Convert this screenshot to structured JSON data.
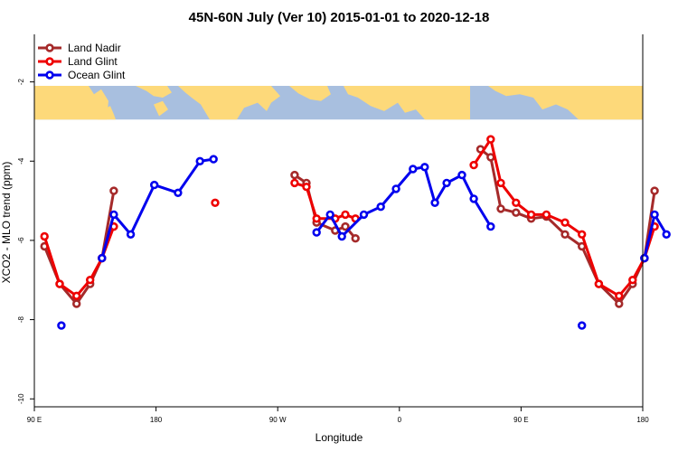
{
  "chart_data": {
    "type": "line",
    "title": "45N-60N July (Ver 10)   2015-01-01 to 2020-12-18",
    "xlabel": "Longitude",
    "ylabel": "XCO2 - MLO trend (ppm)",
    "xlim": [
      90,
      450
    ],
    "ylim": [
      -10.2,
      -0.8
    ],
    "x_ticks": [
      {
        "value": 90,
        "label": "90 E"
      },
      {
        "value": 180,
        "label": "180"
      },
      {
        "value": 270,
        "label": "90 W"
      },
      {
        "value": 360,
        "label": "0"
      },
      {
        "value": 450,
        "label": "90 E"
      },
      {
        "value": 540,
        "label": "180"
      }
    ],
    "y_ticks": [
      {
        "value": -2,
        "label": "-2"
      },
      {
        "value": -4,
        "label": "-4"
      },
      {
        "value": -6,
        "label": "-6"
      },
      {
        "value": -8,
        "label": "-8"
      },
      {
        "value": -10,
        "label": "-10"
      }
    ],
    "map_band": {
      "ymin": -2.95,
      "ymax": -2.1,
      "ocean_color": "#a8bfdf",
      "land_color": "#fdd97a"
    },
    "legend": {
      "position": "top-left"
    },
    "series": [
      {
        "name": "Land Nadir",
        "color": "#a52a2a",
        "segments": [
          [
            [
              96,
              -6.15
            ],
            [
              105,
              -7.1
            ],
            [
              115,
              -7.6
            ],
            [
              123,
              -7.1
            ],
            [
              130,
              -6.45
            ],
            [
              137,
              -4.75
            ]
          ],
          [
            [
              244,
              -4.35
            ],
            [
              251,
              -4.55
            ],
            [
              257,
              -5.55
            ],
            [
              268,
              -5.75
            ],
            [
              274,
              -5.65
            ],
            [
              280,
              -5.95
            ]
          ],
          [
            [
              354,
              -3.7
            ],
            [
              360,
              -3.9
            ],
            [
              366,
              -5.2
            ],
            [
              375,
              -5.3
            ],
            [
              384,
              -5.45
            ],
            [
              393,
              -5.4
            ],
            [
              404,
              -5.85
            ],
            [
              414,
              -6.15
            ],
            [
              424,
              -7.1
            ],
            [
              436,
              -7.6
            ],
            [
              444,
              -7.1
            ],
            [
              451,
              -6.45
            ],
            [
              457,
              -4.75
            ]
          ]
        ],
        "isolated": []
      },
      {
        "name": "Land Glint",
        "color": "#ee0000",
        "segments": [
          [
            [
              96,
              -5.9
            ],
            [
              105,
              -7.1
            ],
            [
              115,
              -7.4
            ],
            [
              123,
              -7.0
            ],
            [
              130,
              -6.45
            ],
            [
              137,
              -5.65
            ]
          ],
          [
            [
              244,
              -4.55
            ],
            [
              251,
              -4.65
            ],
            [
              257,
              -5.45
            ],
            [
              268,
              -5.45
            ],
            [
              274,
              -5.35
            ],
            [
              280,
              -5.45
            ]
          ],
          [
            [
              350,
              -4.1
            ],
            [
              360,
              -3.45
            ],
            [
              366,
              -4.55
            ],
            [
              375,
              -5.05
            ],
            [
              384,
              -5.35
            ],
            [
              393,
              -5.35
            ],
            [
              404,
              -5.55
            ],
            [
              414,
              -5.85
            ],
            [
              424,
              -7.1
            ],
            [
              436,
              -7.4
            ],
            [
              444,
              -7.0
            ],
            [
              451,
              -6.45
            ],
            [
              457,
              -5.65
            ]
          ]
        ],
        "isolated": [
          [
            197,
            -5.05
          ]
        ]
      },
      {
        "name": "Ocean Glint",
        "color": "#0000ee",
        "segments": [
          [
            [
              130,
              -6.45
            ],
            [
              137,
              -5.35
            ],
            [
              147,
              -5.85
            ],
            [
              161,
              -4.6
            ],
            [
              175,
              -4.8
            ],
            [
              188,
              -4.0
            ],
            [
              196,
              -3.95
            ]
          ],
          [
            [
              257,
              -5.8
            ],
            [
              265,
              -5.35
            ],
            [
              272,
              -5.9
            ],
            [
              285,
              -5.35
            ],
            [
              295,
              -5.15
            ],
            [
              304,
              -4.7
            ],
            [
              314,
              -4.2
            ],
            [
              321,
              -4.15
            ],
            [
              327,
              -5.05
            ],
            [
              334,
              -4.55
            ],
            [
              343,
              -4.35
            ],
            [
              350,
              -4.95
            ],
            [
              360,
              -5.65
            ]
          ],
          [
            [
              451,
              -6.45
            ],
            [
              457,
              -5.35
            ],
            [
              464,
              -5.85
            ]
          ]
        ],
        "isolated": [
          [
            106,
            -8.15
          ],
          [
            414,
            -8.15
          ]
        ]
      }
    ]
  }
}
